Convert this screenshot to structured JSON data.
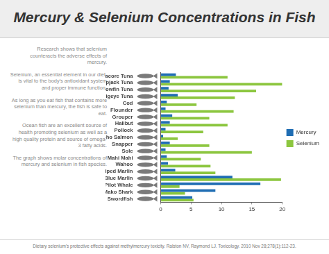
{
  "chart_data": {
    "type": "bar",
    "orientation": "horizontal",
    "title": "Mercury & Selenium Concentrations in Fish",
    "annotations": [
      "Research shows that selenium counteracts the adverse effects of mercury.",
      "Selenium, an essential element in our diet, is vital to the body's antioxidant system and proper immune function.",
      "As long as you eat fish that contains more selenium than mercury, the fish is safe to eat.",
      "Ocean fish are an excellent source of health promoting selenium as well as a high quality protein and source of omega-3 fatty acids.",
      "The graph shows molar concentrations of mercury and selenium in fish species."
    ],
    "source": "Dietary selenium's protective effects against methylmercury toxicity. Ralston NV, Raymond LJ. Toxicology. 2010 Nov 28;278(1):112-23.",
    "categories": [
      "Albacore Tuna",
      "Skipjack Tuna",
      "Yellowfin Tuna",
      "Bigeye Tuna",
      "Cod",
      "Flounder",
      "Grouper",
      "Halibut",
      "Pollock",
      "Coho Salmon",
      "Snapper",
      "Sole",
      "Mahi Mahi",
      "Wahoo",
      "Striped Marlin",
      "Blue Marlin",
      "Pilot Whale",
      "Mako Shark",
      "Swordfish"
    ],
    "series": [
      {
        "name": "Mercury",
        "color": "#1f6db3",
        "values": [
          2.5,
          1.5,
          1.3,
          2.8,
          1.0,
          0.8,
          1.9,
          1.5,
          0.8,
          0.4,
          1.5,
          0.8,
          1.0,
          1.2,
          2.4,
          11.8,
          16.4,
          9.0,
          5.2
        ]
      },
      {
        "name": "Selenium",
        "color": "#8cc63f",
        "values": [
          11.0,
          20.0,
          15.7,
          12.2,
          5.9,
          12.0,
          8.0,
          11.0,
          7.0,
          2.8,
          8.0,
          15.0,
          6.6,
          8.2,
          9.0,
          19.8,
          3.1,
          4.0,
          5.4
        ]
      }
    ],
    "xlim": [
      0,
      20
    ],
    "xticks": [
      0,
      5,
      10,
      15,
      20
    ],
    "grid": false,
    "legend": "right"
  }
}
